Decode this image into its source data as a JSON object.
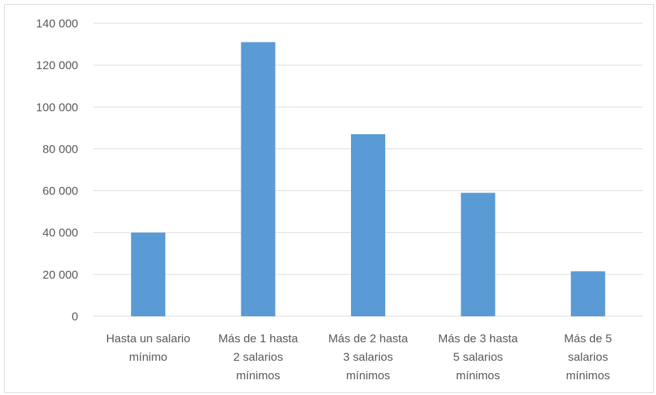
{
  "chart_data": {
    "type": "bar",
    "categories": [
      [
        "Hasta un salario",
        "mínimo"
      ],
      [
        "Más de 1 hasta",
        "2 salarios",
        "mínimos"
      ],
      [
        "Más de 2 hasta",
        "3 salarios",
        "mínimos"
      ],
      [
        "Más de 3 hasta",
        "5 salarios",
        "mínimos"
      ],
      [
        "Más de 5",
        "salarios",
        "mínimos"
      ]
    ],
    "values": [
      40000,
      131000,
      87000,
      59000,
      21500
    ],
    "ylim": [
      0,
      140000
    ],
    "yticks": [
      0,
      20000,
      40000,
      60000,
      80000,
      100000,
      120000,
      140000
    ],
    "ytick_labels": [
      "0",
      "20 000",
      "40 000",
      "60 000",
      "80 000",
      "100 000",
      "120 000",
      "140 000"
    ],
    "bar_color": "#5b9bd5",
    "grid_color": "#d9d9d9",
    "grid": true,
    "legend": "none"
  }
}
